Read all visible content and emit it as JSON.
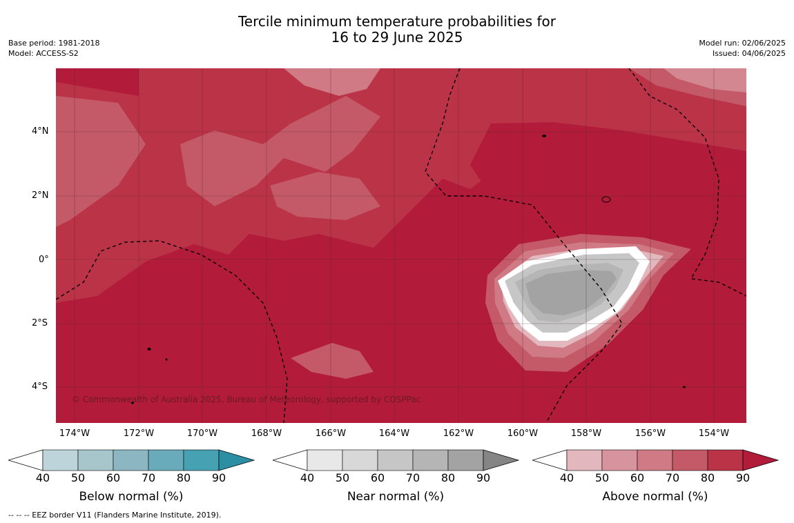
{
  "title_line1": "Tercile minimum temperature probabilities for",
  "title_line2": "16 to 29 June 2025",
  "base_period": "Base period: 1981-2018",
  "model": "Model: ACCESS-S2",
  "model_run": "Model run: 02/06/2025",
  "issued": "Issued: 04/06/2025",
  "lat_labels": [
    "4°N",
    "2°N",
    "0°",
    "2°S",
    "4°S"
  ],
  "lon_labels": [
    "174°W",
    "172°W",
    "170°W",
    "168°W",
    "166°W",
    "164°W",
    "162°W",
    "160°W",
    "158°W",
    "156°W",
    "154°W"
  ],
  "copyright": "© Commonwealth of Australia 2025, Bureau of Meteorology, supported by COSPPac",
  "colorbars": [
    {
      "title": "Below normal (%)",
      "ticks": [
        "40",
        "50",
        "60",
        "70",
        "80",
        "90"
      ],
      "colors": [
        "#bdd4da",
        "#a6c6cc",
        "#8bb6c2",
        "#6aabbb",
        "#46a1b3",
        "#2c8fa3"
      ]
    },
    {
      "title": "Near normal (%)",
      "ticks": [
        "40",
        "50",
        "60",
        "70",
        "80",
        "90"
      ],
      "colors": [
        "#e8e8e8",
        "#d8d8d8",
        "#c6c6c6",
        "#b5b5b5",
        "#a3a3a3",
        "#858585"
      ]
    },
    {
      "title": "Above normal (%)",
      "ticks": [
        "40",
        "50",
        "60",
        "70",
        "80",
        "90"
      ],
      "colors": [
        "#e2b8be",
        "#d8949e",
        "#cf7a84",
        "#c45a68",
        "#bb3347",
        "#b31b3a"
      ]
    }
  ],
  "footnote": "--  --  -- EEZ border V11 (Flanders Marine Institute, 2019)."
}
